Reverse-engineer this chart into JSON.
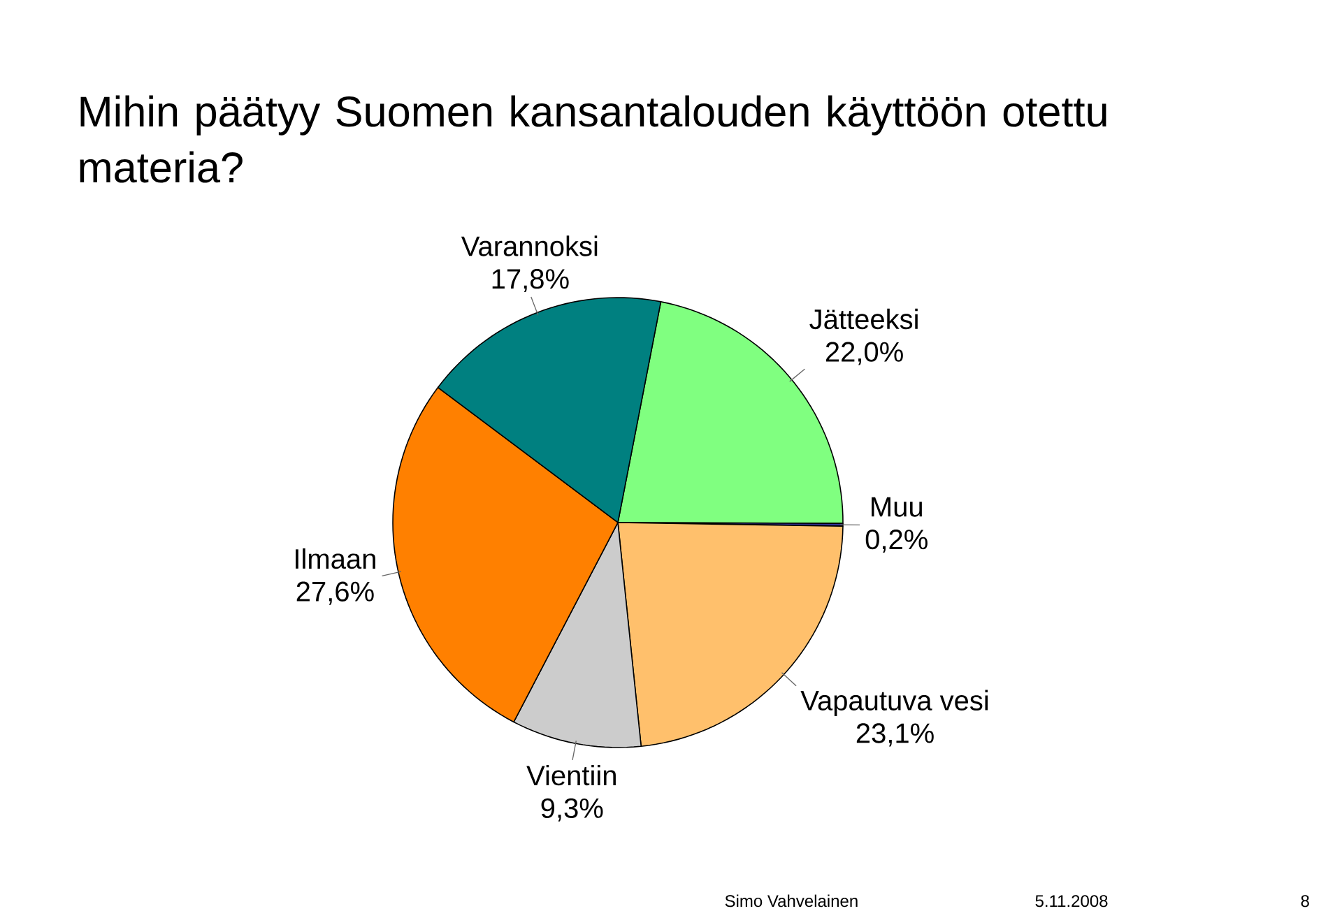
{
  "chart_data": {
    "type": "pie",
    "title": "Mihin päätyy Suomen kansantalouden käyttöön otettu materia?",
    "categories": [
      "Jätteeksi",
      "Muu",
      "Vapautuva vesi",
      "Vientiin",
      "Ilmaan",
      "Varannoksi"
    ],
    "values": [
      22.0,
      0.2,
      23.1,
      9.3,
      27.6,
      17.8
    ],
    "value_labels": [
      "22,0%",
      "0,2%",
      "23,1%",
      "9,3%",
      "27,6%",
      "17,8%"
    ],
    "colors": [
      "#80ff80",
      "#333399",
      "#ffc06c",
      "#cccccc",
      "#ff8000",
      "#008080"
    ],
    "annotations": [
      "Simo Vahvelainen",
      "5.11.2008",
      "8"
    ]
  }
}
